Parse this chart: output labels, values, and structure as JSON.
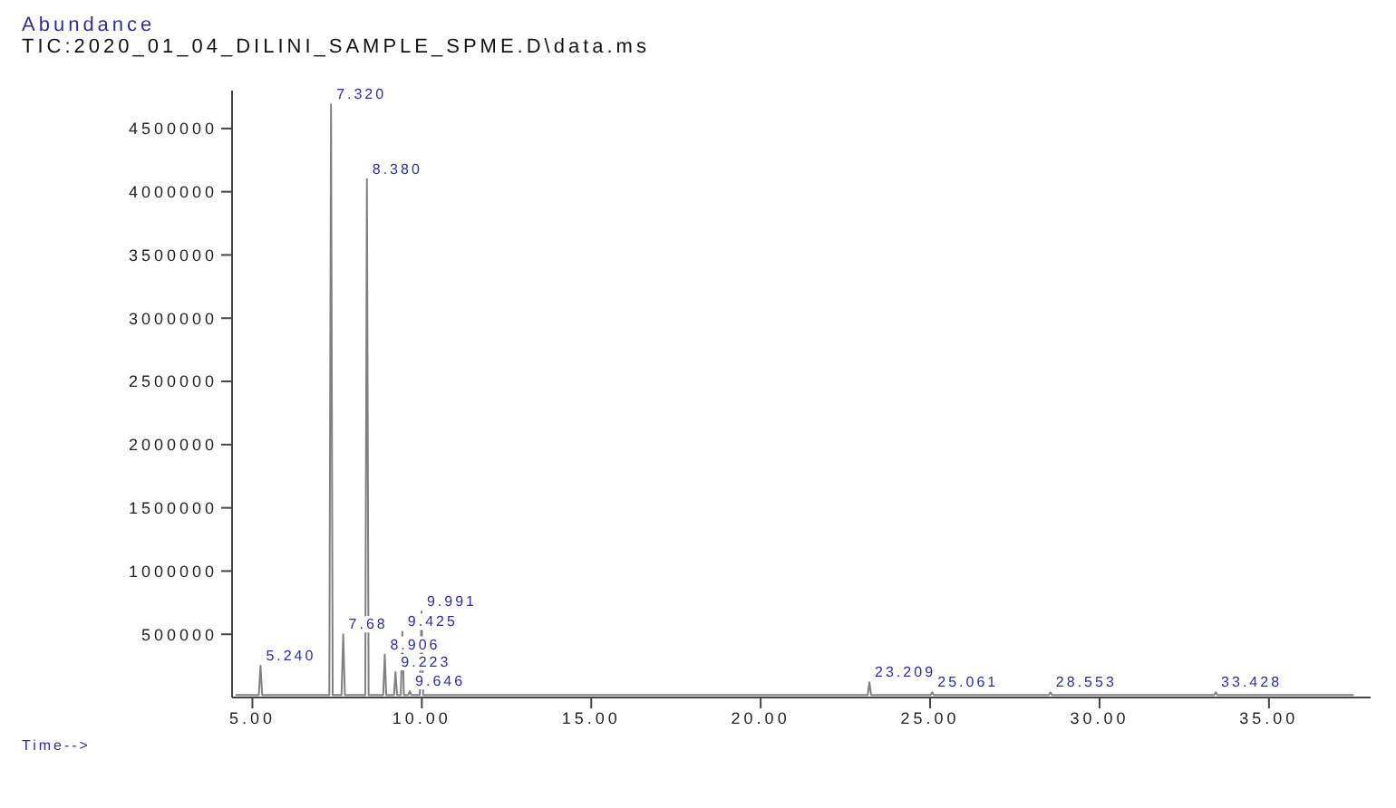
{
  "chart_data": {
    "type": "line",
    "title": "TIC:2020_01_04_DILINI_SAMPLE_SPME.D\\data.ms",
    "ylabel": "Abundance",
    "xlabel": "Time-->",
    "x": [
      4.5,
      5.19,
      5.24,
      5.29,
      7.27,
      7.32,
      7.37,
      7.63,
      7.68,
      7.73,
      8.33,
      8.38,
      8.43,
      8.86,
      8.906,
      8.95,
      9.18,
      9.223,
      9.27,
      9.38,
      9.425,
      9.47,
      9.6,
      9.646,
      9.69,
      9.94,
      9.991,
      10.04,
      23.16,
      23.209,
      23.26,
      25.01,
      25.061,
      25.11,
      28.5,
      28.553,
      28.6,
      33.38,
      33.428,
      33.48,
      37.5
    ],
    "series": [
      {
        "color": "#808080",
        "values": [
          20000,
          20000,
          250000,
          20000,
          20000,
          4690000,
          20000,
          20000,
          500000,
          20000,
          20000,
          4100000,
          20000,
          20000,
          340000,
          20000,
          20000,
          200000,
          20000,
          20000,
          520000,
          20000,
          20000,
          50000,
          20000,
          20000,
          680000,
          20000,
          20000,
          120000,
          20000,
          20000,
          40000,
          20000,
          20000,
          40000,
          20000,
          20000,
          40000,
          20000,
          20000
        ]
      }
    ],
    "xlim": [
      4.4,
      38
    ],
    "xticks": [
      {
        "value": 5,
        "label": "5.00"
      },
      {
        "value": 10,
        "label": "10.00"
      },
      {
        "value": 15,
        "label": "15.00"
      },
      {
        "value": 20,
        "label": "20.00"
      },
      {
        "value": 25,
        "label": "25.00"
      },
      {
        "value": 30,
        "label": "30.00"
      },
      {
        "value": 35,
        "label": "35.00"
      }
    ],
    "ylim": [
      0,
      4800000
    ],
    "yticks": [
      500000,
      1000000,
      1500000,
      2000000,
      2500000,
      3000000,
      3500000,
      4000000,
      4500000
    ],
    "annotations": [
      {
        "text": "5.240",
        "x": 5.24,
        "y": 250000
      },
      {
        "text": "7.320",
        "x": 7.32,
        "y": 4690000
      },
      {
        "text": "7.68",
        "x": 7.68,
        "y": 500000
      },
      {
        "text": "8.380",
        "x": 8.38,
        "y": 4100000
      },
      {
        "text": "8.906",
        "x": 8.906,
        "y": 340000
      },
      {
        "text": "9.223",
        "x": 9.223,
        "y": 200000
      },
      {
        "text": "9.425",
        "x": 9.425,
        "y": 520000
      },
      {
        "text": "9.646",
        "x": 9.646,
        "y": 50000
      },
      {
        "text": "9.991",
        "x": 9.991,
        "y": 680000
      },
      {
        "text": "23.209",
        "x": 23.209,
        "y": 120000
      },
      {
        "text": "25.061",
        "x": 25.061,
        "y": 40000
      },
      {
        "text": "28.553",
        "x": 28.553,
        "y": 40000
      },
      {
        "text": "33.428",
        "x": 33.428,
        "y": 40000
      }
    ]
  }
}
